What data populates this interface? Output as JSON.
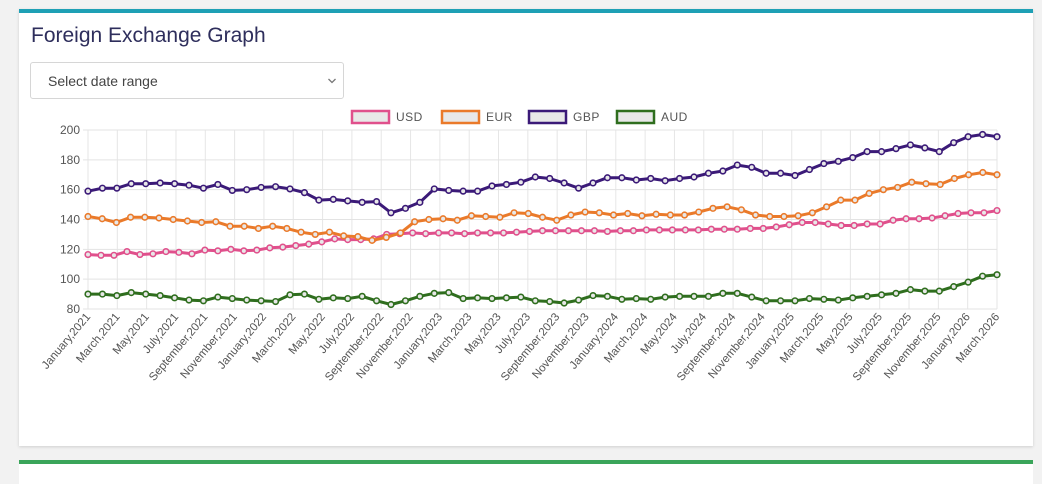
{
  "card": {
    "title": "Foreign Exchange Graph",
    "select": {
      "selected": "Select date range",
      "icon": "chevron-down-icon"
    }
  },
  "colors": {
    "accent": "#1ea0b5",
    "bottom_accent": "#3aa55a"
  },
  "chart_data": {
    "type": "line",
    "x_labels": [
      "January,2021",
      "March,2021",
      "May,2021",
      "July,2021",
      "September,2021",
      "November,2021",
      "January,2022",
      "March,2022",
      "May,2022",
      "July,2022",
      "September,2022",
      "November,2022",
      "January,2023",
      "March,2023",
      "May,2023",
      "July,2023",
      "September,2023",
      "November,2023",
      "January,2024",
      "March,2024",
      "May,2024",
      "July,2024",
      "September,2024",
      "November,2024",
      "January,2025",
      "March,2025",
      "May,2025",
      "July,2025",
      "September,2025",
      "November,2025",
      "January,2026",
      "March,2026"
    ],
    "ylim": [
      80,
      200
    ],
    "yticks": [
      80,
      100,
      120,
      140,
      160,
      180,
      200
    ],
    "grid": true,
    "legend_position": "top-center",
    "series": [
      {
        "name": "USD",
        "color": "#e0508c",
        "values": [
          116.5,
          116,
          116,
          118.5,
          116.5,
          117,
          118.5,
          118,
          117,
          119.5,
          119,
          120,
          119,
          119.5,
          121,
          121.5,
          122.5,
          123.5,
          125,
          127,
          126.5,
          126.5,
          127,
          130,
          130.5,
          131,
          130.5,
          131,
          131,
          130.5,
          131,
          131,
          131,
          131.5,
          132,
          132.5,
          132.5,
          132.5,
          132.5,
          132.5,
          132,
          132.5,
          132.5,
          133,
          133,
          133,
          133,
          133,
          133.5,
          133.5,
          133.5,
          134,
          134,
          135,
          136.5,
          138,
          138,
          137,
          136,
          136,
          137,
          137,
          139.5,
          140.5,
          140.5,
          141,
          142.5,
          144,
          144.5,
          144.5,
          146
        ]
      },
      {
        "name": "EUR",
        "color": "#ea7a2a",
        "values": [
          142,
          140.5,
          138,
          141.5,
          141.5,
          141,
          140,
          139,
          138,
          138.5,
          135.5,
          135.5,
          134,
          135.5,
          134,
          131.5,
          130,
          131.5,
          129,
          128.5,
          126,
          128,
          131,
          138.5,
          140,
          140.5,
          139.5,
          142.5,
          142,
          141.5,
          144.5,
          144,
          141.5,
          139.5,
          143,
          145,
          144.5,
          143,
          144,
          142.5,
          143.5,
          143,
          143,
          145,
          147.5,
          148.5,
          146.5,
          143,
          142,
          142,
          142.5,
          144.5,
          148.5,
          153,
          153,
          157.5,
          160,
          161.5,
          165,
          164,
          163.5,
          167.5,
          170,
          171.5,
          170
        ]
      },
      {
        "name": "GBP",
        "color": "#3b1a78",
        "values": [
          159,
          161,
          161,
          164,
          164,
          164.5,
          164,
          163,
          161,
          163.5,
          159.5,
          160,
          161.5,
          162,
          160.5,
          158,
          153,
          153.5,
          152.5,
          151.5,
          152,
          144.5,
          147.5,
          151.5,
          160.5,
          159.5,
          159,
          159,
          162.5,
          163.5,
          165,
          168.5,
          167.5,
          164.5,
          161,
          164.5,
          168,
          168,
          166.5,
          167.5,
          166,
          167.5,
          168.5,
          171,
          172.5,
          176.5,
          175,
          171,
          171,
          169.5,
          173.5,
          177.5,
          179,
          181.5,
          185.5,
          185.5,
          187.5,
          190,
          188,
          185.5,
          191.5,
          195.5,
          197,
          195.5
        ]
      },
      {
        "name": "AUD",
        "color": "#2f6e1e",
        "values": [
          90,
          90,
          89,
          91,
          90,
          89,
          87.5,
          86,
          85.5,
          88,
          87,
          86,
          85.5,
          85,
          89.5,
          90,
          86.5,
          87.5,
          87,
          88.5,
          85.5,
          83,
          85.5,
          88.5,
          90.5,
          91,
          87,
          87.5,
          87,
          87.5,
          88,
          85.5,
          85,
          84,
          86,
          89,
          88.5,
          86.5,
          87,
          86.5,
          88,
          88.5,
          88.5,
          88.5,
          90.5,
          90.5,
          88,
          85.5,
          85.5,
          85.5,
          87,
          86.5,
          86,
          87.5,
          88.5,
          89.5,
          90.5,
          93,
          92,
          92,
          95,
          98,
          102,
          103
        ]
      }
    ]
  }
}
